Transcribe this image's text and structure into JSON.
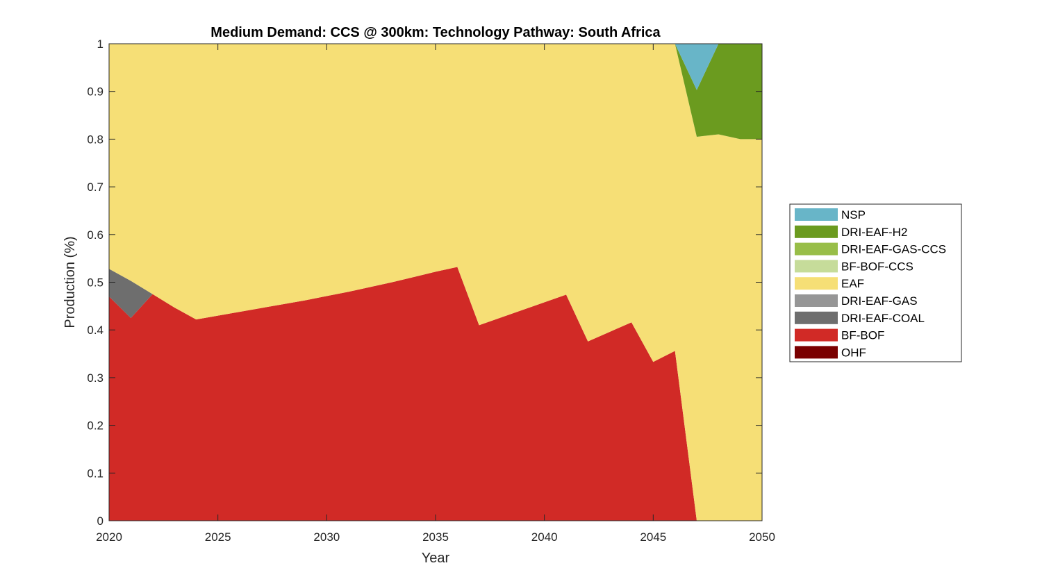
{
  "chart_data": {
    "type": "area",
    "stacked": true,
    "title": "Medium Demand: CCS @ 300km: Technology Pathway: South Africa",
    "xlabel": "Year",
    "ylabel": "Production (%)",
    "xlim": [
      2020,
      2050
    ],
    "ylim": [
      0,
      1
    ],
    "xticks": [
      "2020",
      "2025",
      "2030",
      "2035",
      "2040",
      "2045",
      "2050"
    ],
    "yticks": [
      "0",
      "0.1",
      "0.2",
      "0.3",
      "0.4",
      "0.5",
      "0.6",
      "0.7",
      "0.8",
      "0.9",
      "1"
    ],
    "grid": false,
    "legend_position": "right",
    "x": [
      2020,
      2021,
      2022,
      2023,
      2024,
      2025,
      2026,
      2027,
      2028,
      2029,
      2030,
      2031,
      2032,
      2033,
      2034,
      2035,
      2036,
      2037,
      2038,
      2039,
      2040,
      2041,
      2042,
      2043,
      2044,
      2045,
      2046,
      2047,
      2048,
      2049,
      2050
    ],
    "series": [
      {
        "name": "OHF",
        "color": "#7a0000",
        "values": [
          0,
          0,
          0,
          0,
          0,
          0,
          0,
          0,
          0,
          0,
          0,
          0,
          0,
          0,
          0,
          0,
          0,
          0,
          0,
          0,
          0,
          0,
          0,
          0,
          0,
          0,
          0,
          0,
          0,
          0,
          0
        ]
      },
      {
        "name": "BF-BOF",
        "color": "#d12a26",
        "values": [
          0.47,
          0.425,
          0.475,
          0.447,
          0.422,
          0.43,
          0.438,
          0.446,
          0.454,
          0.462,
          0.471,
          0.48,
          0.49,
          0.5,
          0.511,
          0.522,
          0.532,
          0.41,
          0.426,
          0.442,
          0.458,
          0.474,
          0.376,
          0.396,
          0.416,
          0.333,
          0.356,
          0,
          0,
          0,
          0
        ]
      },
      {
        "name": "DRI-EAF-COAL",
        "color": "#6e6e6e",
        "values": [
          0.058,
          0.078,
          0,
          0,
          0,
          0,
          0,
          0,
          0,
          0,
          0,
          0,
          0,
          0,
          0,
          0,
          0,
          0,
          0,
          0,
          0,
          0,
          0,
          0,
          0,
          0,
          0,
          0,
          0,
          0,
          0
        ]
      },
      {
        "name": "DRI-EAF-GAS",
        "color": "#969696",
        "values": [
          0,
          0,
          0,
          0,
          0,
          0,
          0,
          0,
          0,
          0,
          0,
          0,
          0,
          0,
          0,
          0,
          0,
          0,
          0,
          0,
          0,
          0,
          0,
          0,
          0,
          0,
          0,
          0,
          0,
          0,
          0
        ]
      },
      {
        "name": "EAF",
        "color": "#f6df76",
        "values": [
          0.472,
          0.497,
          0.525,
          0.553,
          0.578,
          0.57,
          0.562,
          0.554,
          0.546,
          0.538,
          0.529,
          0.52,
          0.51,
          0.5,
          0.489,
          0.478,
          0.468,
          0.59,
          0.574,
          0.558,
          0.542,
          0.526,
          0.624,
          0.604,
          0.584,
          0.667,
          0.644,
          0.805,
          0.81,
          0.8,
          0.8
        ]
      },
      {
        "name": "BF-BOF-CCS",
        "color": "#c6dc9a",
        "values": [
          0,
          0,
          0,
          0,
          0,
          0,
          0,
          0,
          0,
          0,
          0,
          0,
          0,
          0,
          0,
          0,
          0,
          0,
          0,
          0,
          0,
          0,
          0,
          0,
          0,
          0,
          0,
          0,
          0,
          0,
          0
        ]
      },
      {
        "name": "DRI-EAF-GAS-CCS",
        "color": "#98be48",
        "values": [
          0,
          0,
          0,
          0,
          0,
          0,
          0,
          0,
          0,
          0,
          0,
          0,
          0,
          0,
          0,
          0,
          0,
          0,
          0,
          0,
          0,
          0,
          0,
          0,
          0,
          0,
          0,
          0,
          0,
          0,
          0
        ]
      },
      {
        "name": "DRI-EAF-H2",
        "color": "#6b9b1f",
        "values": [
          0,
          0,
          0,
          0,
          0,
          0,
          0,
          0,
          0,
          0,
          0,
          0,
          0,
          0,
          0,
          0,
          0,
          0,
          0,
          0,
          0,
          0,
          0,
          0,
          0,
          0,
          0,
          0.098,
          0.19,
          0.2,
          0.2
        ]
      },
      {
        "name": "NSP",
        "color": "#68b5c8",
        "values": [
          0,
          0,
          0,
          0,
          0,
          0,
          0,
          0,
          0,
          0,
          0,
          0,
          0,
          0,
          0,
          0,
          0,
          0,
          0,
          0,
          0,
          0,
          0,
          0,
          0,
          0,
          0,
          0.097,
          0,
          0,
          0
        ]
      }
    ],
    "legend_order": [
      "NSP",
      "DRI-EAF-H2",
      "DRI-EAF-GAS-CCS",
      "BF-BOF-CCS",
      "EAF",
      "DRI-EAF-GAS",
      "DRI-EAF-COAL",
      "BF-BOF",
      "OHF"
    ]
  }
}
